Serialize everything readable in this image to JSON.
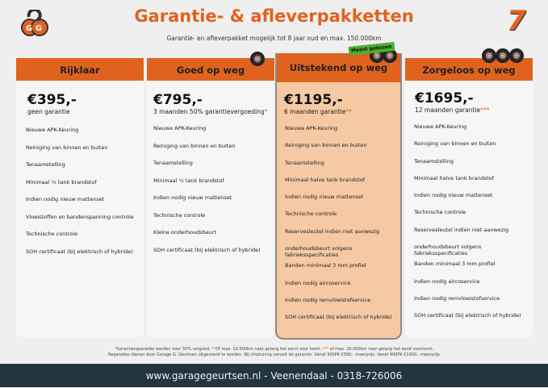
{
  "header": {
    "title": "Garantie- & afleverpakketten",
    "subtitle": "Garantie- en afleverpakket mogelijk tot 8 jaar oud en max. 150.000km",
    "logo_text": "GG",
    "badge": "7"
  },
  "colors": {
    "accent": "#e0621f",
    "featured": "#f5c9a3",
    "footer": "#233640",
    "badge": "#4caf2f"
  },
  "packages": [
    {
      "name": "Rijklaar",
      "price": "€395,-",
      "subtitle": "geen garantie",
      "asterisk": "",
      "items": [
        "Nieuwe APK-Keuring",
        "Reiniging van binnen en buiten",
        "Tenaamstelling",
        "Minimaal ¼  tank brandstof",
        "Indien nodig nieuw mattenset",
        "Vloeistoffen en bandenspanning controle",
        "Technische controle",
        "SOH certificaat (bij elektrisch of hybride)"
      ]
    },
    {
      "name": "Goed op weg",
      "price": "€795,-",
      "subtitle": "3 maanden 50% garantievergoeding",
      "asterisk": "*",
      "items": [
        "Nieuwe APK-Keuring",
        "Reiniging van binnen en buiten",
        "Tenaamstelling",
        "Minimaal ¼ tank brandstof",
        "Indien nodig nieuw mattenset",
        "Technische controle",
        "Kleine onderhoudsbeurt",
        "SOH certificaat (bij elektrisch of hybride)"
      ]
    },
    {
      "name": "Uitstekend op weg",
      "price": "€1195,-",
      "subtitle": "6 maanden garantie",
      "asterisk": "**",
      "badge": "Meest gekozen",
      "items": [
        "Nieuwe APK-Keuring",
        "Reiniging van binnen en buiten",
        "Tenaamstelling",
        "Minimaal halve tank brandstof",
        "Indien nodig nieuw mattenset",
        "Technische controle",
        "Reservesleutel indien niet aanwezig",
        "onderhoudsbeurt volgens fabrieksspecificaties",
        "Banden minimaal 3 mm profiel",
        "Indien nodig aircoservice",
        "Indien nodig remvloeistofservice",
        "SOH certificaat (bij elektrisch of hybride)"
      ]
    },
    {
      "name": "Zorgeloos op weg",
      "price": "€1695,-",
      "subtitle": "12 maanden garantie",
      "asterisk": "***",
      "items": [
        "Nieuwe APK-Keuring",
        "Reiniging van binnen en buiten",
        "Tenaamstelling",
        "Minimaal halve tank brandstof",
        "Indien nodig nieuw mattenset",
        "Technische controle",
        "Reservesleutel indien niet aanwezig",
        "onderhoudsbeurt volgens fabrieksspecificaties",
        "Banden minimaal 3 mm profiel",
        "Indien nodig aircoservice",
        "Indien nodig remvloeistofservice",
        "SOH certificaat (bij elektrisch of hybride)"
      ]
    }
  ],
  "notes": {
    "a1": "*",
    "t1": "Garantiereparaties worden voor 50% vergoed, ",
    "a2": "**",
    "t2": "Of max. 10.000km naar gelang het eerst voor komt. ",
    "a3": "***",
    "t3": " of max. 20.000km naar gelang het eerst voorkomt.",
    "line2": "Reparaties dienen door Garage G. Geurtsen uitgevoerd te worden. Bij chiptuning vervalt de garantie. Vanaf 300PK €500,- meerprijs. Vanaf 400PK €1000,- meerprijs"
  },
  "footer": {
    "text": "www.garagegeurtsen.nl - Veenendaal - 0318-726006"
  }
}
